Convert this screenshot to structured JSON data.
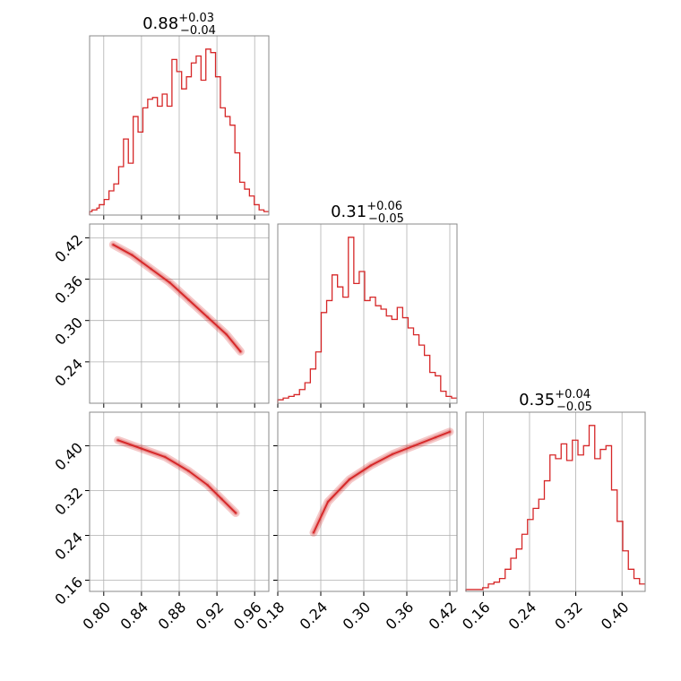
{
  "figure": {
    "background": "#ffffff",
    "line_color": "#d62728",
    "frame_color": "#888888",
    "grid_color": "#b0b0b0"
  },
  "chart_data": [
    {
      "type": "histogram",
      "id": "p1_hist",
      "title": {
        "value": "0.88",
        "upper": "+0.03",
        "lower": "−0.04"
      },
      "xlim": [
        0.785,
        0.975
      ],
      "x_ticks": [
        0.8,
        0.84,
        0.88,
        0.92,
        0.96
      ],
      "grid": true,
      "bins": [
        0.785,
        0.975
      ],
      "counts": [
        2,
        3,
        3,
        4,
        6,
        6,
        9,
        9,
        14,
        14,
        18,
        18,
        28,
        28,
        44,
        44,
        30,
        30,
        57,
        57,
        48,
        48,
        62,
        62,
        67,
        67,
        68,
        68,
        63,
        63,
        70,
        70,
        63,
        63,
        90,
        90,
        83,
        83,
        73,
        73,
        80,
        80,
        88,
        88,
        92,
        92,
        78,
        78,
        96,
        96,
        94,
        94,
        80,
        80,
        62,
        62,
        57,
        57,
        52,
        52,
        36,
        36,
        19,
        19,
        15,
        15,
        11,
        11,
        6,
        6,
        3,
        3,
        2,
        2
      ],
      "color": "#d62728"
    },
    {
      "type": "histogram",
      "id": "p2_hist",
      "title": {
        "value": "0.31",
        "upper": "+0.06",
        "lower": "−0.05"
      },
      "xlim": [
        0.18,
        0.43
      ],
      "x_ticks": [
        0.18,
        0.24,
        0.3,
        0.36,
        0.42
      ],
      "grid": true,
      "counts": [
        2,
        2,
        3,
        3,
        4,
        4,
        5,
        5,
        8,
        8,
        12,
        12,
        20,
        20,
        30,
        30,
        53,
        53,
        60,
        60,
        75,
        75,
        68,
        68,
        62,
        62,
        97,
        97,
        70,
        70,
        77,
        77,
        60,
        60,
        62,
        62,
        57,
        57,
        55,
        55,
        51,
        51,
        49,
        49,
        56,
        56,
        50,
        50,
        44,
        44,
        40,
        40,
        34,
        34,
        28,
        28,
        18,
        18,
        16,
        16,
        7,
        7,
        4,
        4,
        3,
        3
      ],
      "color": "#d62728"
    },
    {
      "type": "histogram",
      "id": "p3_hist",
      "title": {
        "value": "0.35",
        "upper": "+0.04",
        "lower": "−0.05"
      },
      "xlim": [
        0.13,
        0.44
      ],
      "x_ticks": [
        0.16,
        0.24,
        0.32,
        0.4
      ],
      "grid": true,
      "counts": [
        1,
        1,
        1,
        1,
        1,
        1,
        2,
        2,
        4,
        4,
        5,
        5,
        7,
        7,
        12,
        12,
        18,
        18,
        23,
        23,
        31,
        31,
        39,
        39,
        45,
        45,
        50,
        50,
        60,
        60,
        74,
        74,
        72,
        72,
        80,
        80,
        71,
        71,
        82,
        82,
        74,
        74,
        79,
        79,
        90,
        90,
        72,
        72,
        77,
        77,
        79,
        79,
        55,
        55,
        38,
        38,
        22,
        22,
        12,
        12,
        7,
        7,
        4,
        4
      ],
      "color": "#d62728"
    },
    {
      "type": "scatter",
      "id": "p_x1_x2",
      "xlim": [
        0.785,
        0.975
      ],
      "ylim": [
        0.18,
        0.44
      ],
      "x_ticks": [
        0.8,
        0.84,
        0.88,
        0.92,
        0.96
      ],
      "y_ticks": [
        0.24,
        0.3,
        0.36,
        0.42
      ],
      "y_tick_labels": [
        "0.24",
        "0.30",
        "0.36",
        "0.42"
      ],
      "grid": true,
      "contour_points": [
        [
          0.81,
          0.41
        ],
        [
          0.83,
          0.395
        ],
        [
          0.85,
          0.375
        ],
        [
          0.87,
          0.355
        ],
        [
          0.89,
          0.33
        ],
        [
          0.91,
          0.305
        ],
        [
          0.93,
          0.28
        ],
        [
          0.945,
          0.255
        ]
      ],
      "color": "#d62728"
    },
    {
      "type": "scatter",
      "id": "p_x1_x3",
      "xlim": [
        0.785,
        0.975
      ],
      "ylim": [
        0.14,
        0.46
      ],
      "x_ticks": [
        0.8,
        0.84,
        0.88,
        0.92,
        0.96
      ],
      "x_tick_labels": [
        "0.80",
        "0.84",
        "0.88",
        "0.92",
        "0.96"
      ],
      "y_ticks": [
        0.16,
        0.24,
        0.32,
        0.4
      ],
      "y_tick_labels": [
        "0.16",
        "0.24",
        "0.32",
        "0.40"
      ],
      "grid": true,
      "contour_points": [
        [
          0.815,
          0.41
        ],
        [
          0.84,
          0.395
        ],
        [
          0.865,
          0.38
        ],
        [
          0.89,
          0.355
        ],
        [
          0.91,
          0.33
        ],
        [
          0.925,
          0.305
        ],
        [
          0.94,
          0.28
        ]
      ],
      "color": "#d62728"
    },
    {
      "type": "scatter",
      "id": "p_x2_x3",
      "xlim": [
        0.18,
        0.43
      ],
      "ylim": [
        0.14,
        0.46
      ],
      "x_ticks": [
        0.18,
        0.24,
        0.3,
        0.36,
        0.42
      ],
      "x_tick_labels": [
        "0.18",
        "0.24",
        "0.30",
        "0.36",
        "0.42"
      ],
      "grid": true,
      "contour_points": [
        [
          0.23,
          0.245
        ],
        [
          0.25,
          0.3
        ],
        [
          0.28,
          0.34
        ],
        [
          0.31,
          0.365
        ],
        [
          0.34,
          0.385
        ],
        [
          0.37,
          0.4
        ],
        [
          0.4,
          0.415
        ],
        [
          0.42,
          0.425
        ]
      ],
      "color": "#d62728"
    },
    {
      "type": "histogram-axis",
      "id": "p3_axis",
      "x_tick_labels": [
        "0.16",
        "0.24",
        "0.32",
        "0.40"
      ]
    }
  ]
}
